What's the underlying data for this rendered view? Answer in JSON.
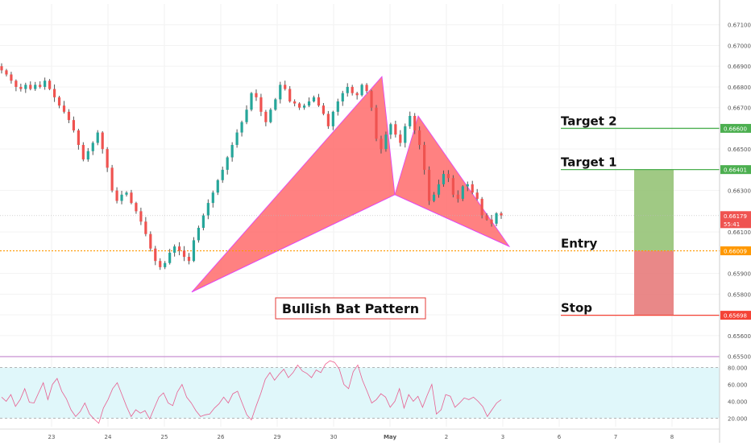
{
  "colors": {
    "bull": "#26a69a",
    "bear": "#ef5350",
    "wick": "#333333",
    "pattern_fill": "#ff6b6b",
    "pattern_stroke": "#e040fb",
    "target_line": "#4caf50",
    "entry_line": "#ff9800",
    "stop_line": "#f44336",
    "profit_zone": "#8fbf6f",
    "loss_zone": "#e57373",
    "current_price": "#ef5350",
    "rsi_line": "#e91e63",
    "rsi_band": "#e0f7fa",
    "rsi_level": "#9e9e9e"
  },
  "chart_data": {
    "type": "candlestick",
    "y_axis": {
      "ylim": [
        0.6551,
        0.672
      ],
      "ticks": [
        "0.67100",
        "0.67000",
        "0.66900",
        "0.66800",
        "0.66700",
        "0.66500",
        "0.66300",
        "0.66100",
        "0.65900",
        "0.65800",
        "0.65700",
        "0.65600",
        "0.65500"
      ]
    },
    "x_axis": {
      "ticks": [
        "23",
        "24",
        "25",
        "26",
        "29",
        "30",
        "May",
        "2",
        "3",
        "6",
        "7",
        "8"
      ]
    },
    "price_labels": [
      {
        "key": "target2",
        "text": "0.66600",
        "value": 0.666,
        "color": "#4caf50"
      },
      {
        "key": "target1",
        "text": "0.66401",
        "value": 0.66401,
        "color": "#4caf50"
      },
      {
        "key": "current",
        "text": "0.66179",
        "value": 0.66179,
        "color": "#ef5350"
      },
      {
        "key": "countdown",
        "text": "55:41",
        "value": 0.6614,
        "color": "#ef5350"
      },
      {
        "key": "entry",
        "text": "0.66009",
        "value": 0.66009,
        "color": "#ff9800"
      },
      {
        "key": "stop",
        "text": "0.65698",
        "value": 0.65698,
        "color": "#f44336"
      }
    ],
    "levels": [
      {
        "name": "target-2",
        "label": "Target 2",
        "value": 0.666
      },
      {
        "name": "target-1",
        "label": "Target 1",
        "value": 0.66401
      },
      {
        "name": "entry",
        "label": "Entry",
        "value": 0.66009
      },
      {
        "name": "stop",
        "label": "Stop",
        "value": 0.65698
      }
    ],
    "pattern": {
      "title": "Bullish Bat Pattern",
      "points": {
        "X": 0.6581,
        "A": 0.6685,
        "B": 0.6628,
        "C": 0.6666,
        "D": 0.6603
      }
    },
    "close_path": [
      0.6688,
      0.6686,
      0.6683,
      0.668,
      0.6679,
      0.6681,
      0.6679,
      0.6681,
      0.668,
      0.6683,
      0.6679,
      0.6675,
      0.6671,
      0.6668,
      0.6664,
      0.6659,
      0.6652,
      0.6645,
      0.6649,
      0.6653,
      0.6658,
      0.665,
      0.6641,
      0.663,
      0.6625,
      0.6628,
      0.6629,
      0.6624,
      0.662,
      0.6615,
      0.6609,
      0.6602,
      0.6596,
      0.6593,
      0.6595,
      0.66,
      0.6603,
      0.6601,
      0.6598,
      0.6596,
      0.6606,
      0.6612,
      0.6618,
      0.6624,
      0.6629,
      0.6635,
      0.664,
      0.6646,
      0.6652,
      0.6658,
      0.6663,
      0.6669,
      0.6677,
      0.6675,
      0.6668,
      0.6663,
      0.6669,
      0.6674,
      0.6681,
      0.6679,
      0.6673,
      0.6672,
      0.667,
      0.6671,
      0.6673,
      0.6675,
      0.6671,
      0.6667,
      0.6661,
      0.6668,
      0.6673,
      0.6677,
      0.668,
      0.6677,
      0.6676,
      0.6681,
      0.6678,
      0.667,
      0.6655,
      0.665,
      0.6657,
      0.6662,
      0.6657,
      0.6653,
      0.6661,
      0.6666,
      0.6659,
      0.6652,
      0.664,
      0.6625,
      0.6628,
      0.6633,
      0.6638,
      0.6636,
      0.6628,
      0.6626,
      0.6632,
      0.6633,
      0.6629,
      0.6626,
      0.6618,
      0.6616,
      0.6614,
      0.6619,
      0.6618
    ],
    "rsi": {
      "levels": [
        80,
        20
      ],
      "ticks": [
        "80.000",
        "60.000",
        "40.000",
        "20.000"
      ],
      "ylim": [
        10,
        90
      ],
      "values": [
        45,
        40,
        48,
        34,
        42,
        55,
        39,
        38,
        50,
        62,
        42,
        60,
        67,
        52,
        43,
        30,
        22,
        28,
        38,
        25,
        19,
        14,
        32,
        42,
        55,
        62,
        48,
        34,
        22,
        30,
        26,
        29,
        19,
        32,
        45,
        50,
        38,
        35,
        51,
        60,
        45,
        38,
        29,
        22,
        24,
        25,
        32,
        37,
        45,
        38,
        49,
        52,
        38,
        24,
        18,
        34,
        49,
        66,
        74,
        65,
        72,
        78,
        68,
        74,
        83,
        76,
        73,
        68,
        77,
        74,
        84,
        88,
        86,
        78,
        60,
        55,
        75,
        83,
        65,
        52,
        38,
        42,
        49,
        45,
        33,
        40,
        55,
        32,
        48,
        40,
        46,
        33,
        47,
        60,
        25,
        30,
        48,
        46,
        33,
        38,
        44,
        42,
        45,
        40,
        34,
        22,
        30,
        38,
        42
      ]
    }
  }
}
